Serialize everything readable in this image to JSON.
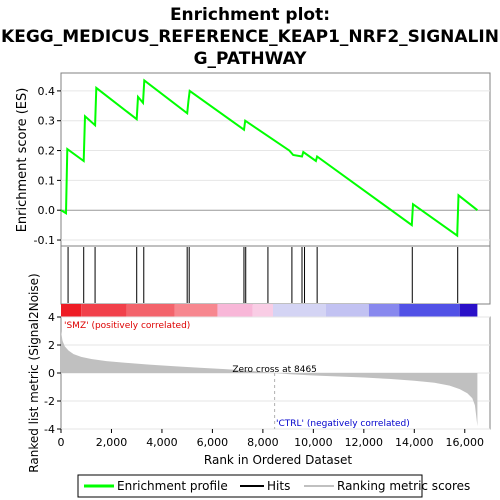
{
  "chart_data": {
    "type": "line",
    "title_lines": [
      "Enrichment plot:",
      "KEGG_MEDICUS_REFERENCE_KEAP1_NRF2_SIGNALIN",
      "G_PATHWAY"
    ],
    "es_panel": {
      "ylabel": "Enrichment score (ES)",
      "ylim": [
        -0.12,
        0.46
      ],
      "yticks": [
        -0.1,
        0.0,
        0.1,
        0.2,
        0.3,
        0.4
      ],
      "ytick_labels": [
        "-0.1",
        "0.0",
        "0.1",
        "0.2",
        "0.3",
        "0.4"
      ],
      "series": [
        {
          "name": "Enrichment profile",
          "color": "#00ff00",
          "x": [
            0,
            200,
            250,
            900,
            950,
            1350,
            1400,
            3000,
            3050,
            3250,
            3300,
            5000,
            5050,
            5100,
            7250,
            7300,
            9050,
            9100,
            9200,
            9550,
            9600,
            10100,
            10150,
            13900,
            13950,
            15700,
            15750,
            16500
          ],
          "y": [
            0.0,
            -0.01,
            0.205,
            0.165,
            0.315,
            0.285,
            0.41,
            0.305,
            0.38,
            0.36,
            0.435,
            0.325,
            0.365,
            0.4,
            0.27,
            0.3,
            0.2,
            0.195,
            0.185,
            0.18,
            0.195,
            0.165,
            0.18,
            -0.05,
            0.02,
            -0.085,
            0.05,
            0.0
          ]
        }
      ]
    },
    "hits": {
      "name": "Hits",
      "x": [
        280,
        900,
        1350,
        3000,
        3280,
        5000,
        5080,
        7250,
        7320,
        8200,
        9150,
        9550,
        9650,
        10150,
        13920,
        15720
      ]
    },
    "ranking_bar": {
      "xmax": 16500,
      "segments": [
        {
          "start": 0,
          "end": 800,
          "color": "#ee1c25"
        },
        {
          "start": 800,
          "end": 2600,
          "color": "#f1404a"
        },
        {
          "start": 2600,
          "end": 4500,
          "color": "#f3636b"
        },
        {
          "start": 4500,
          "end": 6200,
          "color": "#f7878f"
        },
        {
          "start": 6200,
          "end": 7600,
          "color": "#f8b7d8"
        },
        {
          "start": 7600,
          "end": 8400,
          "color": "#f9cde5"
        },
        {
          "start": 8400,
          "end": 10500,
          "color": "#d4d4f4"
        },
        {
          "start": 10500,
          "end": 12200,
          "color": "#c2c2f2"
        },
        {
          "start": 12200,
          "end": 13400,
          "color": "#8888ee"
        },
        {
          "start": 13400,
          "end": 15800,
          "color": "#5151e6"
        },
        {
          "start": 15800,
          "end": 16500,
          "color": "#2a10c8"
        }
      ]
    },
    "metric_panel": {
      "ylabel": "Ranked list metric (Signal2Noise)",
      "ylim": [
        -4,
        4
      ],
      "yticks": [
        -4,
        -2,
        0,
        2,
        4
      ],
      "ytick_labels": [
        "-4",
        "-2",
        "0",
        "2",
        "4"
      ],
      "curve_x": [
        0,
        60,
        150,
        300,
        500,
        800,
        1200,
        1800,
        2600,
        3500,
        4500,
        5500,
        6500,
        7500,
        8465,
        9000,
        10000,
        11000,
        12000,
        13000,
        14000,
        14800,
        15400,
        15800,
        16100,
        16300,
        16400,
        16450,
        16500
      ],
      "curve_y": [
        3.0,
        2.3,
        1.9,
        1.6,
        1.35,
        1.15,
        1.0,
        0.85,
        0.72,
        0.6,
        0.48,
        0.38,
        0.28,
        0.16,
        0.0,
        -0.08,
        -0.18,
        -0.25,
        -0.32,
        -0.42,
        -0.55,
        -0.7,
        -0.9,
        -1.15,
        -1.45,
        -1.8,
        -2.3,
        -3.0,
        -3.8
      ],
      "color": "#c0c0c0",
      "zero_cross_x": 8465,
      "zero_cross_label": "Zero cross at 8465",
      "pos_label": "'SMZ' (positively correlated)",
      "neg_label": "'CTRL' (negatively correlated)"
    },
    "x_axis": {
      "label": "Rank in Ordered Dataset",
      "xlim": [
        0,
        17000
      ],
      "ticks": [
        0,
        2000,
        4000,
        6000,
        8000,
        10000,
        12000,
        14000,
        16000
      ],
      "tick_labels": [
        "0",
        "2,000",
        "4,000",
        "6,000",
        "8,000",
        "10,000",
        "12,000",
        "14,000",
        "16,000"
      ]
    },
    "legend": [
      {
        "name": "Enrichment profile",
        "color": "#00ff00"
      },
      {
        "name": "Hits",
        "color": "#000000"
      },
      {
        "name": "Ranking metric scores",
        "color": "#c0c0c0"
      }
    ]
  }
}
